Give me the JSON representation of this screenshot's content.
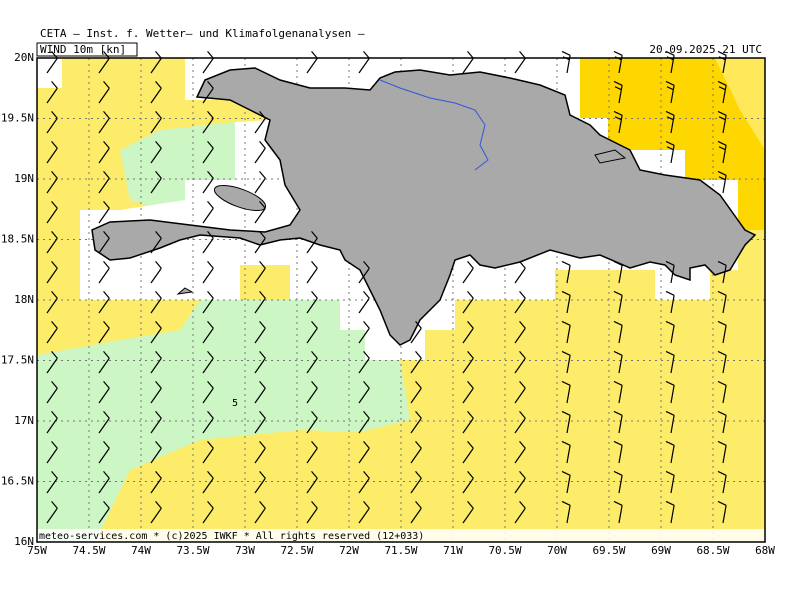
{
  "header": {
    "institute": "CETA — Inst. f. Wetter— und Klimafolgenanalysen —",
    "field": "WIND 10m [kn]",
    "valid_time": "20.09.2025 21 UTC"
  },
  "axes": {
    "longitudes": [
      "75W",
      "74.5W",
      "74W",
      "73.5W",
      "73W",
      "72.5W",
      "72W",
      "71.5W",
      "71W",
      "70.5W",
      "70W",
      "69.5W",
      "69W",
      "68.5W",
      "68W"
    ],
    "latitudes": [
      "20N",
      "19.5N",
      "19N",
      "18.5N",
      "18N",
      "17.5N",
      "17N",
      "16.5N",
      "16N"
    ]
  },
  "contour_labels": [
    "5"
  ],
  "footer": "meteo-services.com * (c)2025 IWKF * All rights reserved (12+033)"
}
